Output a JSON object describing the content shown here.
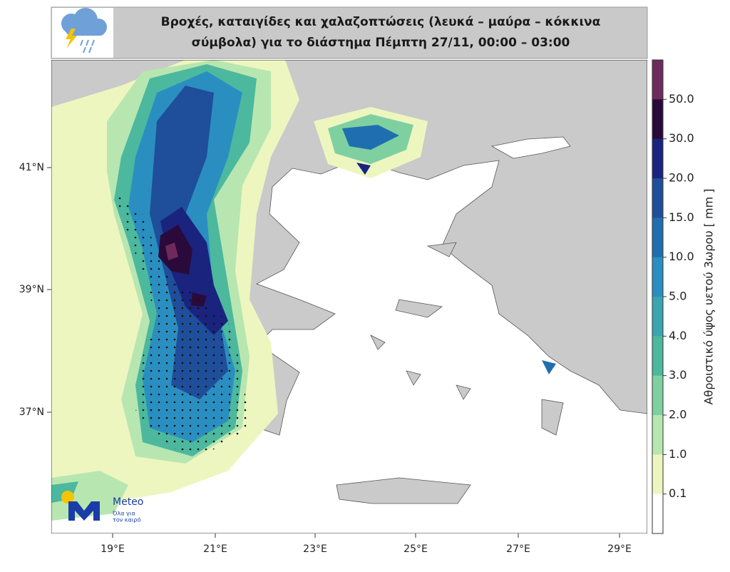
{
  "header": {
    "title_lines": [
      "Βροχές, καταιγίδες και χαλαζοπτώσεις (λευκά – μαύρα – κόκκινα",
      "σύμβολα) για το διάστημα Πέμπτη 27/11, 00:00 – 03:00"
    ]
  },
  "map": {
    "x_axis_labels": [
      "19°E",
      "21°E",
      "23°E",
      "25°E",
      "27°E",
      "29°E"
    ],
    "y_axis_labels": [
      "41°N",
      "39°N",
      "37°N"
    ]
  },
  "colorbar": {
    "label": "Αθροιστικό ύψος υετού 3ωρου [ mm ]",
    "tick_labels": [
      "50.0",
      "30.0",
      "20.0",
      "15.0",
      "10.0",
      "5.0",
      "4.0",
      "3.0",
      "2.0",
      "1.0",
      "0.1"
    ]
  },
  "logo": {
    "name": "Meteo",
    "tagline_lines": [
      "Όλα για",
      "τον καιρό"
    ]
  }
}
